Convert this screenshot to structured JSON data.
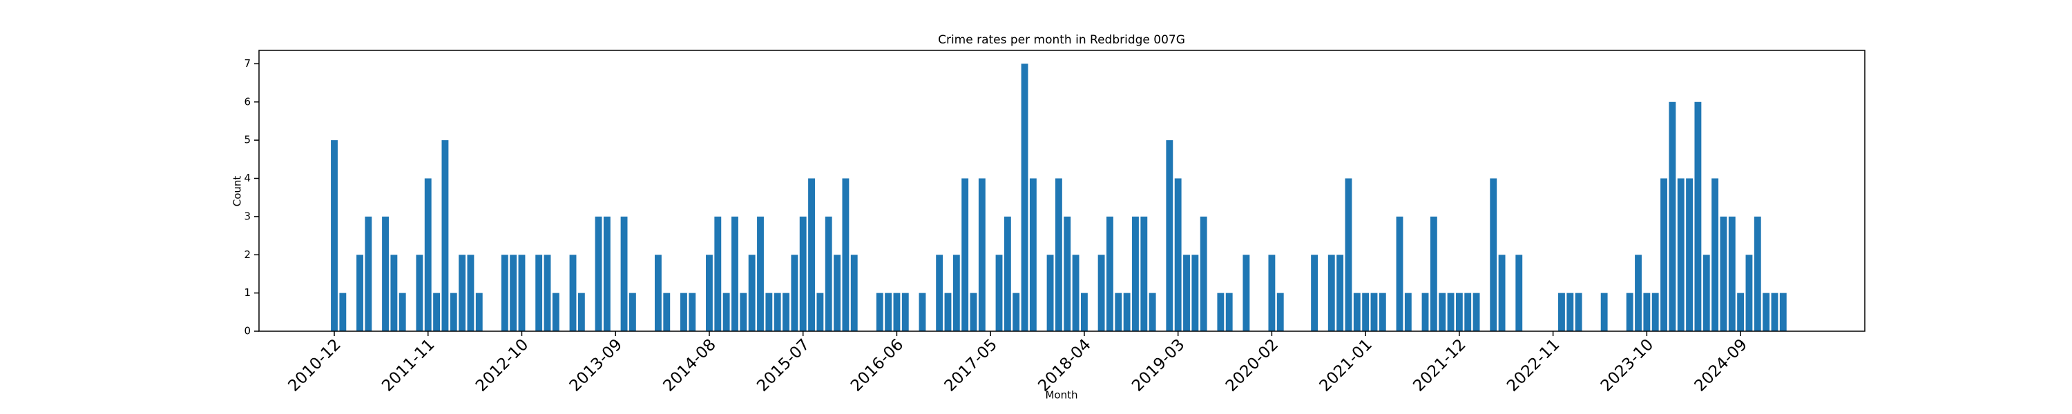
{
  "chart_data": {
    "type": "bar",
    "title": "Crime rates per month in Redbridge 007G",
    "xlabel": "Month",
    "ylabel": "Count",
    "color": "#1f77b4",
    "grid": false,
    "categories": [
      "2010-12",
      null,
      null,
      null,
      null,
      null,
      null,
      null,
      null,
      null,
      null,
      "2011-11",
      null,
      null,
      null,
      null,
      null,
      null,
      null,
      null,
      null,
      null,
      "2012-10",
      null,
      null,
      null,
      null,
      null,
      null,
      null,
      null,
      null,
      null,
      "2013-09",
      null,
      null,
      null,
      null,
      null,
      null,
      null,
      null,
      null,
      null,
      "2014-08",
      null,
      null,
      null,
      null,
      null,
      null,
      null,
      null,
      null,
      null,
      "2015-07",
      null,
      null,
      null,
      null,
      null,
      null,
      null,
      null,
      null,
      null,
      "2016-06",
      null,
      null,
      null,
      null,
      null,
      null,
      null,
      null,
      null,
      null,
      "2017-05",
      null,
      null,
      null,
      null,
      null,
      null,
      null,
      null,
      null,
      null,
      "2018-04",
      null,
      null,
      null,
      null,
      null,
      null,
      null,
      null,
      null,
      null,
      "2019-03",
      null,
      null,
      null,
      null,
      null,
      null,
      null,
      null,
      null,
      null,
      "2020-02",
      null,
      null,
      null,
      null,
      null,
      null,
      null,
      null,
      null,
      null,
      "2021-01",
      null,
      null,
      null,
      null,
      null,
      null,
      null,
      null,
      null,
      null,
      "2021-12",
      null,
      null,
      null,
      null,
      null,
      null,
      null,
      null,
      null,
      null,
      "2022-11",
      null,
      null,
      null,
      null,
      null,
      null,
      null,
      null,
      null,
      null,
      "2023-10",
      null,
      null,
      null,
      null,
      null,
      null,
      null,
      null,
      null,
      null,
      "2024-09",
      null,
      null,
      null,
      null,
      null
    ],
    "values": [
      5,
      1,
      0,
      2,
      3,
      0,
      3,
      2,
      1,
      0,
      2,
      4,
      1,
      5,
      1,
      2,
      2,
      1,
      0,
      0,
      2,
      2,
      2,
      0,
      2,
      2,
      1,
      0,
      2,
      1,
      0,
      3,
      3,
      0,
      3,
      1,
      0,
      0,
      2,
      1,
      0,
      1,
      1,
      0,
      2,
      3,
      1,
      3,
      1,
      2,
      3,
      1,
      1,
      1,
      2,
      3,
      4,
      1,
      3,
      2,
      4,
      2,
      0,
      0,
      1,
      1,
      1,
      1,
      0,
      1,
      0,
      2,
      1,
      2,
      4,
      1,
      4,
      0,
      2,
      3,
      1,
      7,
      4,
      0,
      2,
      4,
      3,
      2,
      1,
      0,
      2,
      3,
      1,
      1,
      3,
      3,
      1,
      0,
      5,
      4,
      2,
      2,
      3,
      0,
      1,
      1,
      0,
      2,
      0,
      0,
      2,
      1,
      0,
      0,
      0,
      2,
      0,
      2,
      2,
      4,
      1,
      1,
      1,
      1,
      0,
      3,
      1,
      0,
      1,
      3,
      1,
      1,
      1,
      1,
      1,
      0,
      4,
      2,
      0,
      2,
      0,
      0,
      0,
      0,
      1,
      1,
      1,
      0,
      0,
      1,
      0,
      0,
      1,
      2,
      1,
      1,
      4,
      6,
      4,
      4,
      6,
      2,
      4,
      3,
      3,
      1,
      2,
      3,
      1,
      1,
      1
    ],
    "ylim": [
      0,
      7.35
    ],
    "yticks": [
      0,
      1,
      2,
      3,
      4,
      5,
      6,
      7
    ]
  }
}
